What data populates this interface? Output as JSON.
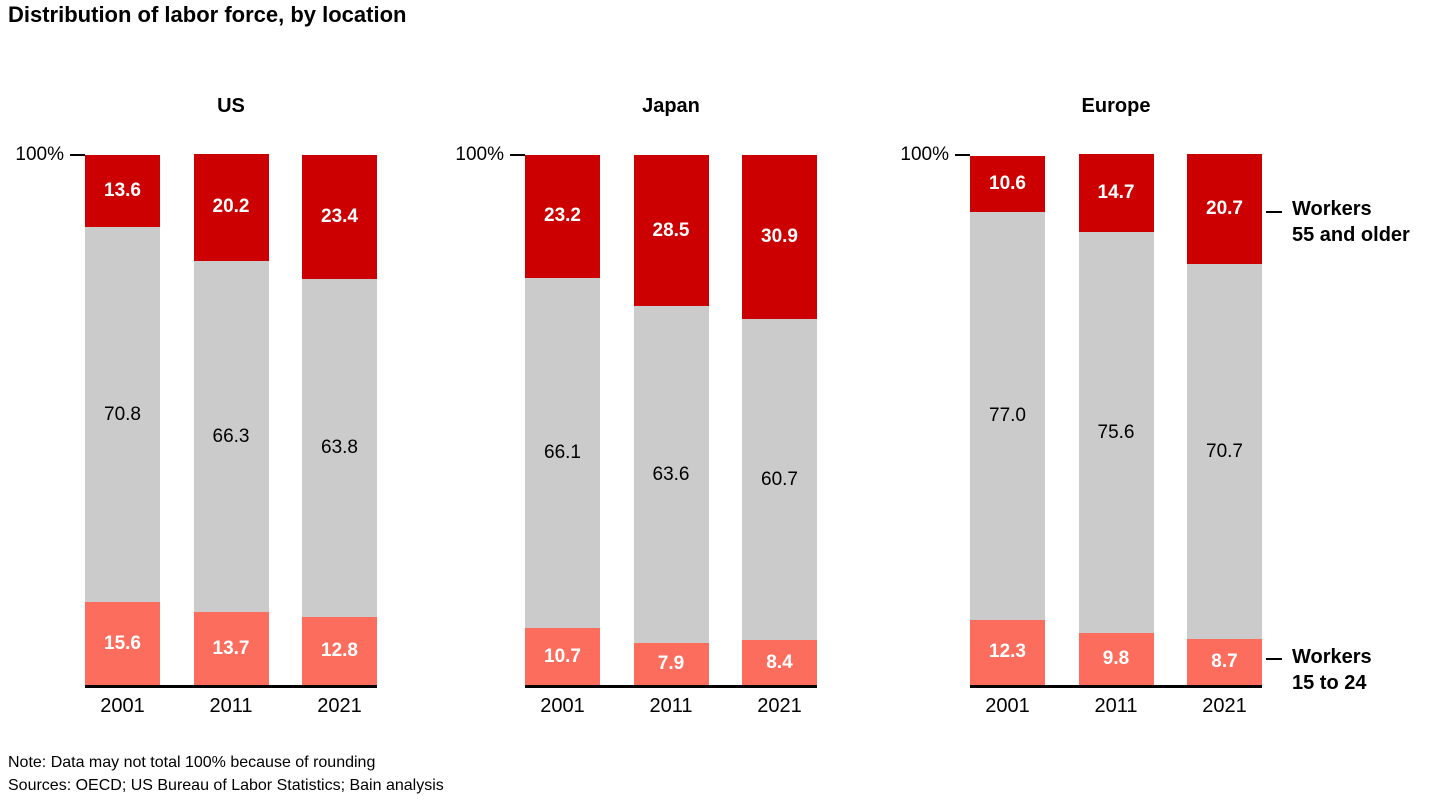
{
  "title": "Distribution of labor force, by location",
  "y_axis_label": "100%",
  "legend": {
    "top": [
      "Workers",
      "55 and older"
    ],
    "bottom": [
      "Workers",
      "15 to 24"
    ]
  },
  "footer": {
    "note": "Note: Data may not total 100% because of rounding",
    "sources": "Sources: OECD; US Bureau of Labor Statistics; Bain analysis"
  },
  "chart_data": {
    "type": "bar",
    "stacked": true,
    "unit": "percent of labor force",
    "axis_max": 100,
    "axis_max_label": "100%",
    "grid": false,
    "segment_colors": {
      "top": "#cc0000",
      "middle": "#cbcbcb",
      "bottom": "#fc6d5e"
    },
    "segment_labels": {
      "top": "Workers 55 and older",
      "middle": "",
      "bottom": "Workers 15 to 24"
    },
    "groups": [
      {
        "name": "US",
        "categories": [
          "2001",
          "2011",
          "2021"
        ],
        "series": [
          {
            "segment": "top",
            "name": "Workers 55 and older",
            "values": [
              13.6,
              20.2,
              23.4
            ]
          },
          {
            "segment": "middle",
            "name": "",
            "values": [
              70.8,
              66.3,
              63.8
            ]
          },
          {
            "segment": "bottom",
            "name": "Workers 15 to 24",
            "values": [
              15.6,
              13.7,
              12.8
            ]
          }
        ]
      },
      {
        "name": "Japan",
        "categories": [
          "2001",
          "2011",
          "2021"
        ],
        "series": [
          {
            "segment": "top",
            "name": "Workers 55 and older",
            "values": [
              23.2,
              28.5,
              30.9
            ]
          },
          {
            "segment": "middle",
            "name": "",
            "values": [
              66.1,
              63.6,
              60.7
            ]
          },
          {
            "segment": "bottom",
            "name": "Workers 15 to 24",
            "values": [
              10.7,
              7.9,
              8.4
            ]
          }
        ]
      },
      {
        "name": "Europe",
        "categories": [
          "2001",
          "2011",
          "2021"
        ],
        "series": [
          {
            "segment": "top",
            "name": "Workers 55 and older",
            "values": [
              10.6,
              14.7,
              20.7
            ]
          },
          {
            "segment": "middle",
            "name": "",
            "values": [
              77.0,
              75.6,
              70.7
            ]
          },
          {
            "segment": "bottom",
            "name": "Workers 15 to 24",
            "values": [
              12.3,
              9.8,
              8.7
            ]
          }
        ]
      }
    ]
  }
}
